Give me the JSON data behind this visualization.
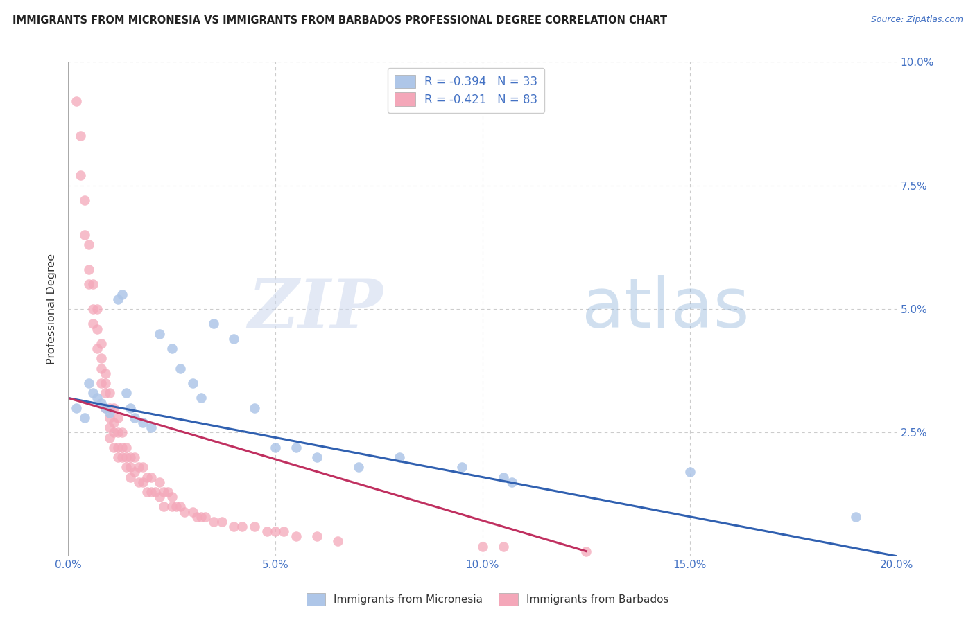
{
  "title": "IMMIGRANTS FROM MICRONESIA VS IMMIGRANTS FROM BARBADOS PROFESSIONAL DEGREE CORRELATION CHART",
  "source": "Source: ZipAtlas.com",
  "ylabel": "Professional Degree",
  "xmin": 0.0,
  "xmax": 0.2,
  "ymin": 0.0,
  "ymax": 0.1,
  "legend1_label": "R = -0.394   N = 33",
  "legend2_label": "R = -0.421   N = 83",
  "scatter_blue_color": "#aec6e8",
  "scatter_pink_color": "#f4a7b9",
  "trend_blue_color": "#3060b0",
  "trend_pink_color": "#c03060",
  "bottom_legend1": "Immigrants from Micronesia",
  "bottom_legend2": "Immigrants from Barbados",
  "watermark_zip": "ZIP",
  "watermark_atlas": "atlas",
  "grid_color": "#cccccc",
  "background_color": "#ffffff",
  "blue_scatter_x": [
    0.002,
    0.004,
    0.005,
    0.006,
    0.007,
    0.008,
    0.009,
    0.01,
    0.012,
    0.013,
    0.014,
    0.015,
    0.016,
    0.018,
    0.02,
    0.022,
    0.025,
    0.027,
    0.03,
    0.032,
    0.035,
    0.04,
    0.045,
    0.05,
    0.055,
    0.06,
    0.07,
    0.08,
    0.095,
    0.105,
    0.107,
    0.15,
    0.19
  ],
  "blue_scatter_y": [
    0.03,
    0.028,
    0.035,
    0.033,
    0.032,
    0.031,
    0.03,
    0.029,
    0.052,
    0.053,
    0.033,
    0.03,
    0.028,
    0.027,
    0.026,
    0.045,
    0.042,
    0.038,
    0.035,
    0.032,
    0.047,
    0.044,
    0.03,
    0.022,
    0.022,
    0.02,
    0.018,
    0.02,
    0.018,
    0.016,
    0.015,
    0.017,
    0.008
  ],
  "pink_scatter_x": [
    0.002,
    0.003,
    0.003,
    0.004,
    0.004,
    0.005,
    0.005,
    0.005,
    0.006,
    0.006,
    0.006,
    0.007,
    0.007,
    0.007,
    0.008,
    0.008,
    0.008,
    0.008,
    0.009,
    0.009,
    0.009,
    0.009,
    0.01,
    0.01,
    0.01,
    0.01,
    0.01,
    0.011,
    0.011,
    0.011,
    0.011,
    0.012,
    0.012,
    0.012,
    0.012,
    0.013,
    0.013,
    0.013,
    0.014,
    0.014,
    0.014,
    0.015,
    0.015,
    0.015,
    0.016,
    0.016,
    0.017,
    0.017,
    0.018,
    0.018,
    0.019,
    0.019,
    0.02,
    0.02,
    0.021,
    0.022,
    0.022,
    0.023,
    0.023,
    0.024,
    0.025,
    0.025,
    0.026,
    0.027,
    0.028,
    0.03,
    0.031,
    0.032,
    0.033,
    0.035,
    0.037,
    0.04,
    0.042,
    0.045,
    0.048,
    0.05,
    0.052,
    0.055,
    0.06,
    0.065,
    0.1,
    0.105,
    0.125
  ],
  "pink_scatter_y": [
    0.092,
    0.085,
    0.077,
    0.072,
    0.065,
    0.063,
    0.058,
    0.055,
    0.055,
    0.05,
    0.047,
    0.05,
    0.046,
    0.042,
    0.043,
    0.04,
    0.038,
    0.035,
    0.037,
    0.035,
    0.033,
    0.03,
    0.033,
    0.03,
    0.028,
    0.026,
    0.024,
    0.03,
    0.027,
    0.025,
    0.022,
    0.028,
    0.025,
    0.022,
    0.02,
    0.025,
    0.022,
    0.02,
    0.022,
    0.02,
    0.018,
    0.02,
    0.018,
    0.016,
    0.02,
    0.017,
    0.018,
    0.015,
    0.018,
    0.015,
    0.016,
    0.013,
    0.016,
    0.013,
    0.013,
    0.015,
    0.012,
    0.013,
    0.01,
    0.013,
    0.012,
    0.01,
    0.01,
    0.01,
    0.009,
    0.009,
    0.008,
    0.008,
    0.008,
    0.007,
    0.007,
    0.006,
    0.006,
    0.006,
    0.005,
    0.005,
    0.005,
    0.004,
    0.004,
    0.003,
    0.002,
    0.002,
    0.001
  ],
  "blue_trend_x": [
    0.0,
    0.2
  ],
  "blue_trend_y": [
    0.032,
    0.0
  ],
  "pink_trend_x": [
    0.0,
    0.125
  ],
  "pink_trend_y": [
    0.032,
    0.001
  ],
  "xtick_labels": [
    "0.0%",
    "5.0%",
    "10.0%",
    "15.0%",
    "20.0%"
  ],
  "xtick_vals": [
    0.0,
    0.05,
    0.1,
    0.15,
    0.2
  ],
  "ytick_labels": [
    "2.5%",
    "5.0%",
    "7.5%",
    "10.0%"
  ],
  "ytick_vals": [
    0.025,
    0.05,
    0.075,
    0.1
  ]
}
